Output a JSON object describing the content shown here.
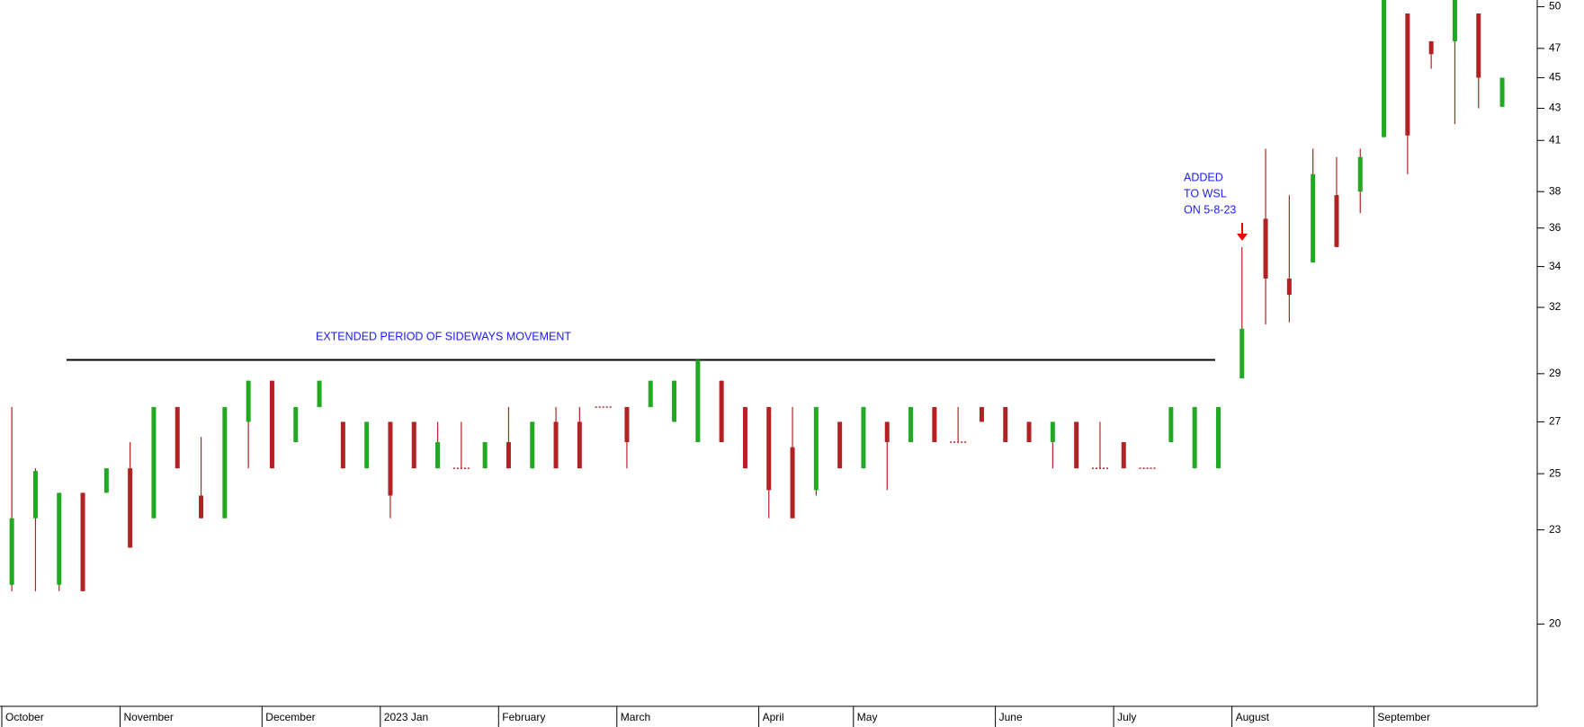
{
  "chart_data": {
    "type": "candlestick",
    "annotations": [
      "EXTENDED PERIOD OF SIDEWAYS MOVEMENT",
      "ADDED",
      "TO WSL",
      "ON 5-8-23"
    ],
    "resistance_line": 29.6,
    "categories": [
      "October",
      null,
      null,
      null,
      null,
      "November",
      null,
      null,
      null,
      null,
      null,
      "December",
      null,
      null,
      null,
      null,
      "2023 Jan",
      null,
      null,
      null,
      null,
      "February",
      null,
      null,
      null,
      null,
      "March",
      null,
      null,
      null,
      null,
      null,
      "April",
      null,
      null,
      null,
      "May",
      null,
      null,
      null,
      null,
      null,
      "June",
      null,
      null,
      null,
      null,
      "July",
      null,
      null,
      null,
      null,
      "August",
      null,
      null,
      null,
      null,
      null,
      "September",
      null,
      null,
      null,
      null,
      null
    ],
    "open": [
      21.2,
      23.4,
      21.2,
      24.3,
      24.3,
      25.2,
      23.4,
      27.6,
      24.2,
      23.4,
      27.0,
      28.7,
      26.2,
      27.6,
      27.0,
      25.2,
      27.0,
      27.0,
      25.2,
      25.2,
      25.2,
      26.2,
      25.2,
      27.0,
      27.0,
      27.6,
      27.6,
      27.6,
      27.0,
      26.2,
      28.7,
      27.6,
      27.6,
      26.0,
      24.4,
      27.0,
      25.2,
      27.0,
      26.2,
      27.6,
      26.2,
      27.6,
      27.6,
      27.0,
      26.2,
      27.0,
      25.2,
      26.2,
      25.2,
      26.2,
      25.2,
      25.2,
      28.8,
      36.5,
      33.4,
      34.2,
      37.8,
      38.0,
      41.2,
      49.5,
      47.5,
      47.5,
      49.5,
      43.1
    ],
    "high": [
      27.6,
      25.2,
      24.3,
      24.3,
      25.2,
      26.2,
      27.6,
      27.6,
      26.4,
      27.6,
      28.7,
      28.7,
      27.6,
      28.7,
      27.0,
      27.0,
      27.0,
      27.0,
      27.0,
      27.0,
      26.2,
      27.6,
      27.0,
      27.6,
      27.6,
      27.6,
      27.6,
      28.7,
      28.7,
      29.6,
      28.7,
      27.6,
      27.6,
      27.6,
      27.6,
      27.0,
      27.6,
      27.0,
      27.6,
      27.6,
      27.6,
      27.6,
      27.6,
      27.0,
      27.0,
      27.0,
      27.0,
      26.2,
      25.2,
      27.6,
      27.6,
      27.6,
      35.0,
      40.5,
      37.8,
      40.5,
      40.0,
      40.5,
      50.5,
      49.5,
      47.5,
      50.5,
      49.5,
      45.0
    ],
    "low": [
      21.0,
      21.0,
      21.0,
      21.0,
      24.3,
      22.4,
      23.4,
      25.2,
      23.4,
      23.4,
      25.2,
      25.2,
      26.2,
      27.6,
      25.2,
      25.2,
      23.4,
      25.2,
      25.2,
      25.2,
      25.2,
      25.2,
      25.2,
      25.2,
      25.2,
      27.6,
      25.2,
      27.6,
      27.0,
      26.2,
      26.2,
      25.2,
      23.4,
      23.4,
      24.2,
      25.2,
      25.2,
      24.4,
      26.2,
      26.2,
      26.2,
      27.0,
      26.2,
      26.2,
      25.2,
      25.2,
      25.2,
      25.2,
      25.2,
      26.2,
      25.2,
      25.2,
      28.8,
      31.2,
      31.3,
      34.2,
      35.0,
      36.8,
      41.2,
      39.0,
      45.6,
      42.0,
      43.0,
      43.1
    ],
    "close": [
      23.4,
      25.1,
      24.3,
      21.0,
      25.2,
      22.4,
      27.6,
      25.2,
      23.4,
      27.6,
      28.7,
      25.2,
      27.6,
      28.7,
      25.2,
      27.0,
      24.2,
      25.2,
      26.2,
      25.2,
      26.2,
      25.2,
      27.0,
      25.2,
      25.2,
      27.6,
      26.2,
      28.7,
      28.7,
      29.6,
      26.2,
      25.2,
      24.4,
      23.4,
      27.6,
      25.2,
      27.6,
      26.2,
      27.6,
      26.2,
      26.2,
      27.0,
      26.2,
      26.2,
      27.0,
      25.2,
      25.2,
      25.2,
      25.2,
      27.6,
      27.6,
      27.6,
      31.0,
      33.4,
      32.6,
      39.0,
      35.0,
      40.0,
      50.5,
      41.3,
      46.6,
      50.5,
      45.0,
      45.0
    ],
    "up_color": "#22a822",
    "down_color": "#b22222",
    "log_scale": true,
    "ylim": [
      17.7,
      50.5
    ],
    "yticks": [
      20,
      23,
      25,
      27,
      29,
      32,
      34,
      36,
      38,
      41,
      43,
      45,
      47,
      50
    ]
  }
}
